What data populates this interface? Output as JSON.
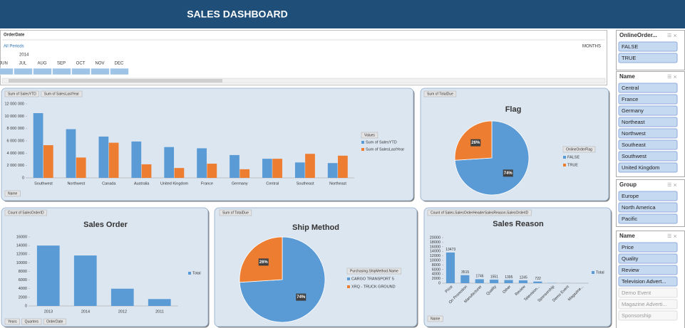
{
  "header": {
    "title": "SALES DASHBOARD"
  },
  "timeline": {
    "field": "OrderDate",
    "period": "All Periods",
    "level": "MONTHS",
    "year": "2014",
    "months": [
      "JUN",
      "JUL",
      "AUG",
      "SEP",
      "OCT",
      "NOV",
      "DEC"
    ]
  },
  "slicers": [
    {
      "title": "OnlineOrder...",
      "items": [
        {
          "label": "FALSE",
          "selected": true
        },
        {
          "label": "TRUE",
          "selected": true
        }
      ]
    },
    {
      "title": "Name",
      "items": [
        {
          "label": "Central",
          "selected": true
        },
        {
          "label": "France",
          "selected": true
        },
        {
          "label": "Germany",
          "selected": true
        },
        {
          "label": "Northeast",
          "selected": true
        },
        {
          "label": "Northwest",
          "selected": true
        },
        {
          "label": "Southeast",
          "selected": true
        },
        {
          "label": "Southwest",
          "selected": true
        },
        {
          "label": "United Kingdom",
          "selected": true
        }
      ]
    },
    {
      "title": "Group",
      "items": [
        {
          "label": "Europe",
          "selected": true
        },
        {
          "label": "North America",
          "selected": true
        },
        {
          "label": "Pacific",
          "selected": true
        }
      ]
    },
    {
      "title": "Name",
      "items": [
        {
          "label": "Price",
          "selected": true
        },
        {
          "label": "Quality",
          "selected": true
        },
        {
          "label": "Review",
          "selected": true
        },
        {
          "label": "Television Advert...",
          "selected": true
        },
        {
          "label": "Demo Event",
          "selected": false
        },
        {
          "label": "Magazine Adverti...",
          "selected": false
        },
        {
          "label": "Sponsorship",
          "selected": false
        }
      ]
    }
  ],
  "chart_data": [
    {
      "type": "bar",
      "value_buttons": [
        "Sum of SalesYTD",
        "Sum of SalesLastYear"
      ],
      "axis_buttons": [
        "Name"
      ],
      "legend_title": "Values",
      "categories": [
        "Southwest",
        "Northwest",
        "Canada",
        "Australia",
        "United Kingdom",
        "France",
        "Germany",
        "Central",
        "Southeast",
        "Northeast"
      ],
      "series": [
        {
          "name": "Sum of SalesYTD",
          "color": "#5b9bd5",
          "values": [
            10500000,
            7900000,
            6700000,
            5900000,
            5000000,
            4800000,
            3700000,
            3100000,
            2500000,
            2400000
          ]
        },
        {
          "name": "Sum of SalesLastYear",
          "color": "#ed7d31",
          "values": [
            5300000,
            3300000,
            5700000,
            2200000,
            1600000,
            2300000,
            1400000,
            3100000,
            3900000,
            3600000
          ]
        }
      ],
      "ylim": [
        0,
        12000000
      ],
      "yticks": [
        0,
        {
          "value": 2000000,
          "label": "2 000 000"
        },
        {
          "value": 4000000,
          "label": "4 000 000"
        },
        {
          "value": 6000000,
          "label": "6 000 000"
        },
        {
          "value": 8000000,
          "label": "8 000 000"
        },
        {
          "value": 10000000,
          "label": "10 000 000"
        },
        {
          "value": 12000000,
          "label": "12 000 000"
        }
      ]
    },
    {
      "type": "pie",
      "title": "Flag",
      "value_buttons": [
        "Sum of TotalDue"
      ],
      "legend_title": "OnlineOrderFlag",
      "categories": [
        "FALSE",
        "TRUE"
      ],
      "colors": [
        "#5b9bd5",
        "#ed7d31"
      ],
      "values": [
        74,
        26
      ],
      "value_labels": [
        "74%",
        "26%"
      ]
    },
    {
      "type": "bar",
      "title": "Sales Order",
      "value_buttons": [
        "Count of SalesOrderID"
      ],
      "axis_buttons": [
        "Years",
        "Quarters",
        "OrderDate"
      ],
      "categories": [
        "2013",
        "2014",
        "2012",
        "2011"
      ],
      "series": [
        {
          "name": "Total",
          "color": "#5b9bd5",
          "values": [
            14000,
            11700,
            4000,
            1600
          ]
        }
      ],
      "ylim": [
        0,
        16000
      ],
      "yticks": [
        0,
        2000,
        4000,
        6000,
        8000,
        10000,
        12000,
        14000,
        16000
      ]
    },
    {
      "type": "pie",
      "title": "Ship Method",
      "value_buttons": [
        "Sum of TotalDue"
      ],
      "legend_title": "Purchasing.ShipMethod.Name",
      "categories": [
        "CARGO TRANSPORT 5",
        "XRQ - TRUCK GROUND"
      ],
      "colors": [
        "#5b9bd5",
        "#ed7d31"
      ],
      "values": [
        74,
        26
      ],
      "value_labels": [
        "74%",
        "26%"
      ]
    },
    {
      "type": "bar",
      "title": "Sales Reason",
      "value_buttons": [
        "Count of Sales.SalesOrderHeaderSalesReason.SalesOrderID"
      ],
      "axis_buttons": [
        "Name"
      ],
      "categories": [
        "Price",
        "On Promotion",
        "Manufacturer",
        "Quality",
        "Other",
        "Review",
        "Television...",
        "Sponsorship",
        "Demo Event",
        "Magazine..."
      ],
      "series": [
        {
          "name": "Total",
          "color": "#5b9bd5",
          "values": [
            13473,
            3515,
            1746,
            1551,
            1395,
            1245,
            722,
            100,
            50,
            30
          ],
          "show_labels": [
            true,
            true,
            true,
            true,
            true,
            true,
            true,
            false,
            false,
            false
          ]
        }
      ],
      "ylim": [
        0,
        20000
      ],
      "yticks": [
        0,
        2000,
        4000,
        6000,
        8000,
        10000,
        12000,
        14000,
        16000,
        18000,
        20000
      ]
    }
  ]
}
